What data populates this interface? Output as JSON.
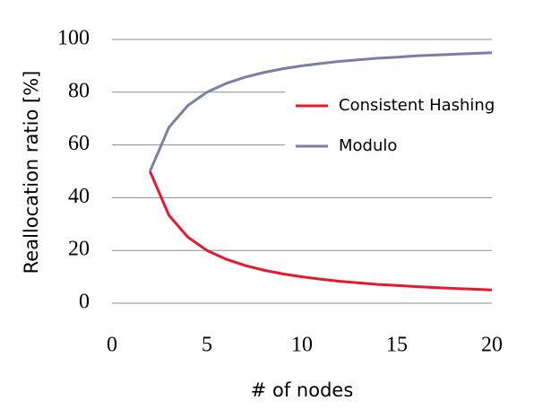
{
  "chart_data": {
    "type": "line",
    "x_label": "# of nodes",
    "y_label": "Reallocation ratio [%]",
    "x": [
      2,
      3,
      4,
      5,
      6,
      7,
      8,
      9,
      10,
      11,
      12,
      13,
      14,
      15,
      16,
      17,
      18,
      19,
      20
    ],
    "series": [
      {
        "name": "Consistent Hashing",
        "color": "#e8192c",
        "values": [
          50,
          33.3,
          25,
          20,
          16.7,
          14.3,
          12.5,
          11.1,
          10,
          9.1,
          8.3,
          7.7,
          7.1,
          6.7,
          6.3,
          5.9,
          5.6,
          5.3,
          5
        ]
      },
      {
        "name": "Modulo",
        "color": "#7a7fa8",
        "values": [
          50,
          66.7,
          75,
          80,
          83.3,
          85.7,
          87.5,
          88.9,
          90,
          90.9,
          91.7,
          92.3,
          92.9,
          93.3,
          93.8,
          94.1,
          94.4,
          94.7,
          95
        ]
      }
    ],
    "xlim": [
      0,
      20
    ],
    "xticks": [
      0,
      5,
      10,
      15,
      20
    ],
    "ylim": [
      0,
      100
    ],
    "yticks": [
      0,
      20,
      40,
      60,
      80,
      100
    ],
    "grid": true,
    "legend": "center right"
  }
}
